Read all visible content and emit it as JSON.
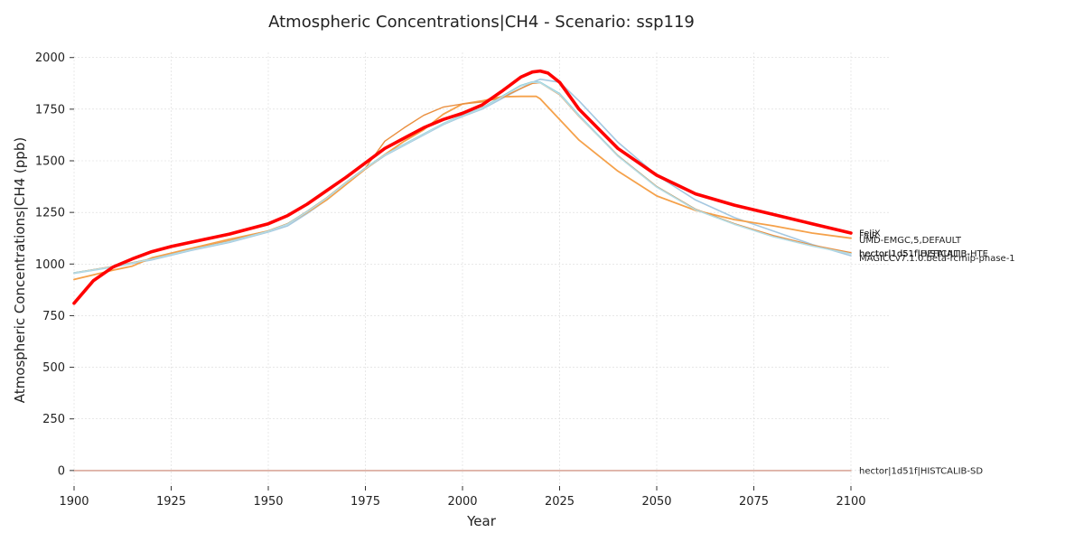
{
  "chart_data": {
    "type": "line",
    "title": "Atmospheric Concentrations|CH4 - Scenario: ssp119",
    "xlabel": "Year",
    "ylabel": "Atmospheric Concentrations|CH4 (ppb)",
    "xlim": [
      1900,
      2110
    ],
    "ylim": [
      -75,
      2025
    ],
    "xticks": [
      1900,
      1925,
      1950,
      1975,
      2000,
      2025,
      2050,
      2075,
      2100
    ],
    "yticks": [
      0,
      250,
      500,
      750,
      1000,
      1250,
      1500,
      1750,
      2000
    ],
    "grid": true,
    "legend": "end-of-line labels",
    "series": [
      {
        "name": "FaIR",
        "color": "#7fc9d6",
        "width": 1.6,
        "x": [
          1900,
          1910,
          1920,
          1930,
          1940,
          1950,
          1955,
          1960,
          1965,
          1970,
          1975,
          1980,
          1985,
          1990,
          1995,
          2000,
          2005,
          2010,
          2015,
          2018,
          2020,
          2025,
          2030,
          2040,
          2050,
          2060,
          2070,
          2080,
          2090,
          2100
        ],
        "y": [
          957,
          987,
          1025,
          1070,
          1110,
          1160,
          1195,
          1255,
          1320,
          1395,
          1465,
          1530,
          1580,
          1630,
          1680,
          1720,
          1755,
          1810,
          1865,
          1882,
          1880,
          1825,
          1720,
          1525,
          1375,
          1265,
          1195,
          1135,
          1090,
          1052
        ]
      },
      {
        "name": "MAGICCv7.1.0.beta-rcmip-phase-1",
        "color": "#a5c8e1",
        "width": 1.6,
        "x": [
          1900,
          1910,
          1920,
          1930,
          1940,
          1950,
          1955,
          1960,
          1965,
          1970,
          1975,
          1980,
          1985,
          1990,
          1995,
          2000,
          2005,
          2010,
          2015,
          2018,
          2020,
          2025,
          2030,
          2040,
          2050,
          2060,
          2070,
          2080,
          2090,
          2100
        ],
        "y": [
          955,
          985,
          1020,
          1065,
          1105,
          1155,
          1185,
          1245,
          1310,
          1385,
          1460,
          1525,
          1575,
          1625,
          1675,
          1715,
          1750,
          1800,
          1850,
          1880,
          1895,
          1880,
          1790,
          1590,
          1430,
          1310,
          1225,
          1160,
          1095,
          1040
        ]
      },
      {
        "name": "UMD-EMGC,5,DEFAULT",
        "color": "#f5a14a",
        "width": 1.8,
        "x": [
          1900,
          1910,
          1915,
          1920,
          1930,
          1940,
          1950,
          1955,
          1960,
          1965,
          1970,
          1975,
          1980,
          1985,
          1990,
          1995,
          2000,
          2005,
          2010,
          2015,
          2019,
          2020,
          2025,
          2030,
          2040,
          2050,
          2060,
          2070,
          2080,
          2090,
          2100
        ],
        "y": [
          925,
          970,
          990,
          1030,
          1075,
          1120,
          1160,
          1195,
          1250,
          1310,
          1385,
          1460,
          1530,
          1595,
          1650,
          1725,
          1775,
          1790,
          1810,
          1812,
          1812,
          1800,
          1700,
          1600,
          1450,
          1330,
          1260,
          1215,
          1185,
          1150,
          1125
        ]
      },
      {
        "name": "hector|1d51f|DEFAULT",
        "color": "#ea8f3f",
        "width": 1.4,
        "x": [
          1900,
          1910,
          1920,
          1930,
          1940,
          1950,
          1955,
          1960,
          1965,
          1970,
          1975,
          1980,
          1985,
          1990,
          1995,
          2000,
          2005,
          2010,
          2015,
          2018,
          2020,
          2025,
          2030,
          2040,
          2050,
          2060,
          2070,
          2080,
          2090,
          2100
        ],
        "y": [
          957,
          988,
          1025,
          1070,
          1112,
          1160,
          1195,
          1255,
          1320,
          1395,
          1465,
          1595,
          1660,
          1720,
          1760,
          1775,
          1785,
          1805,
          1850,
          1875,
          1878,
          1820,
          1715,
          1525,
          1375,
          1265,
          1195,
          1138,
          1092,
          1055
        ]
      },
      {
        "name": "hector|1d51f|HISTCALIB",
        "color": "#9fd1dc",
        "width": 1.4,
        "x": [
          1900,
          1910,
          1920,
          1930,
          1940,
          1950,
          1955,
          1960,
          1965,
          1970,
          1975,
          1980,
          1985,
          1990,
          1995,
          2000,
          2005,
          2010,
          2015,
          2018,
          2020,
          2025,
          2030,
          2040,
          2050,
          2060,
          2070,
          2080,
          2090,
          2100
        ],
        "y": [
          957,
          987,
          1024,
          1069,
          1109,
          1159,
          1194,
          1254,
          1319,
          1394,
          1464,
          1529,
          1579,
          1629,
          1679,
          1719,
          1754,
          1808,
          1863,
          1881,
          1879,
          1823,
          1718,
          1523,
          1373,
          1263,
          1193,
          1133,
          1088,
          1050
        ]
      },
      {
        "name": "hector|1d51f|HISTCALIB-HTE",
        "color": "#b6dce4",
        "width": 1.4,
        "x": [
          1900,
          1910,
          1920,
          1930,
          1940,
          1950,
          1955,
          1960,
          1965,
          1970,
          1975,
          1980,
          1985,
          1990,
          1995,
          2000,
          2005,
          2010,
          2015,
          2018,
          2020,
          2025,
          2030,
          2040,
          2050,
          2060,
          2070,
          2080,
          2090,
          2100
        ],
        "y": [
          956,
          986,
          1023,
          1068,
          1108,
          1158,
          1193,
          1253,
          1318,
          1393,
          1463,
          1528,
          1578,
          1628,
          1678,
          1718,
          1753,
          1807,
          1862,
          1880,
          1878,
          1822,
          1717,
          1522,
          1372,
          1262,
          1192,
          1132,
          1087,
          1049
        ]
      },
      {
        "name": "hector|1d51f|HISTCALIB-SD",
        "color": "#d9a79a",
        "width": 1.6,
        "x": [
          1900,
          2100
        ],
        "y": [
          0,
          0
        ]
      },
      {
        "name": "FeliX",
        "color": "#ff0000",
        "width": 3.6,
        "x": [
          1900,
          1905,
          1910,
          1915,
          1920,
          1925,
          1930,
          1940,
          1950,
          1955,
          1960,
          1965,
          1970,
          1975,
          1980,
          1985,
          1990,
          1995,
          2000,
          2005,
          2010,
          2015,
          2018,
          2020,
          2022,
          2025,
          2030,
          2040,
          2050,
          2060,
          2070,
          2080,
          2090,
          2100
        ],
        "y": [
          810,
          920,
          985,
          1025,
          1060,
          1085,
          1105,
          1145,
          1195,
          1235,
          1290,
          1355,
          1420,
          1490,
          1560,
          1610,
          1660,
          1700,
          1730,
          1770,
          1835,
          1905,
          1930,
          1935,
          1925,
          1880,
          1750,
          1560,
          1430,
          1340,
          1285,
          1240,
          1195,
          1150
        ]
      }
    ],
    "end_labels": [
      {
        "text": "FeliX",
        "y": 1150,
        "color": "#222222"
      },
      {
        "text": "FaIR",
        "y": 1140,
        "color": "#222222"
      },
      {
        "text": "UMD-EMGC,5,DEFAULT",
        "y": 1118,
        "color": "#222222"
      },
      {
        "text": "hector|1d51f|HISTCALIB-HTE",
        "y": 1052,
        "color": "#222222"
      },
      {
        "text": "hector|1d51f|HISTCALIB",
        "y": 1052,
        "color": "#222222"
      },
      {
        "text": "hector|1d51f|DEFAULT",
        "y": 1052,
        "color": "#222222"
      },
      {
        "text": "MAGICCv7.1.0.beta-rcmip-phase-1",
        "y": 1030,
        "color": "#222222"
      },
      {
        "text": "hector|1d51f|HISTCALIB-SD",
        "y": 0,
        "color": "#222222"
      }
    ]
  }
}
